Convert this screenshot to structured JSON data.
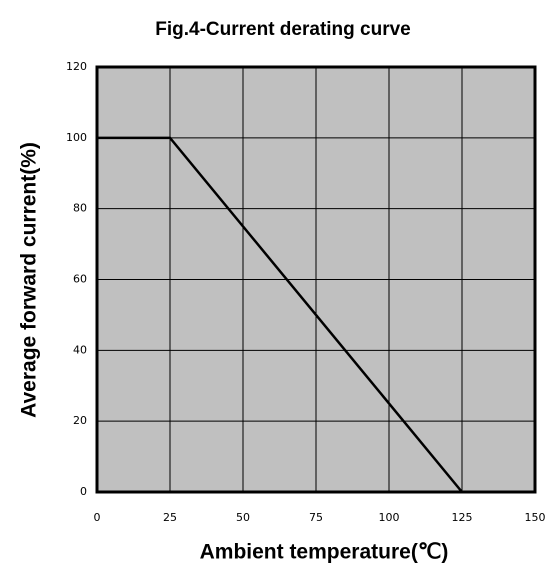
{
  "chart_data": {
    "type": "line",
    "title": "Fig.4-Current derating curve",
    "xlabel": "Ambient temperature(℃)",
    "ylabel": "Average forward current(%)",
    "x": [
      0,
      25,
      125
    ],
    "series": [
      {
        "name": null,
        "color": "#000000",
        "values": [
          100,
          100,
          0
        ]
      }
    ],
    "xlim": [
      0,
      150
    ],
    "xticks": [
      0,
      25,
      50,
      75,
      100,
      125,
      150
    ],
    "ylim": [
      0,
      120
    ],
    "yticks": [
      0,
      20,
      40,
      60,
      80,
      100,
      120
    ],
    "grid": true,
    "background": "#c0c0c0"
  }
}
